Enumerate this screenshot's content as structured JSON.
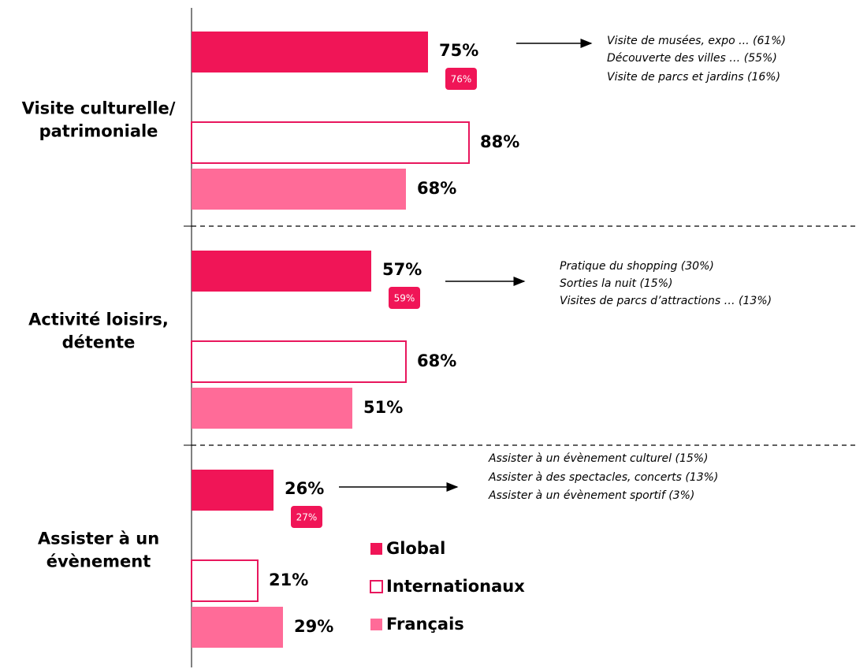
{
  "chart_data": {
    "type": "bar",
    "orientation": "horizontal",
    "categories": [
      "Visite culturelle/\npatrimoniale",
      "Activité loisirs,\ndétente",
      "Assister à un\névènement"
    ],
    "series": [
      {
        "name": "Global",
        "color": "#f01557",
        "values": [
          75,
          57,
          26
        ],
        "value_labels": [
          "75%",
          "57%",
          "26%"
        ]
      },
      {
        "name": "Internationaux",
        "color": "#ffffff",
        "stroke": "#e8175d",
        "values": [
          88,
          68,
          21
        ],
        "value_labels": [
          "88%",
          "68%",
          "21%"
        ]
      },
      {
        "name": "Français",
        "color": "#ff6b98",
        "values": [
          68,
          51,
          29
        ],
        "value_labels": [
          "68%",
          "51%",
          "29%"
        ]
      }
    ],
    "badges": {
      "color": "#f01557",
      "values": [
        76,
        59,
        27
      ],
      "value_labels": [
        "76%",
        "59%",
        "27%"
      ]
    },
    "annotations": [
      [
        "Visite de musées, expo ... (61%)",
        "Découverte des villes … (55%)",
        "Visite de parcs et jardins (16%)"
      ],
      [
        "Pratique du shopping (30%)",
        "Sorties la nuit (15%)",
        "Visites de parcs d’attractions … (13%)"
      ],
      [
        "Assister à un évènement culturel (15%)",
        "Assister à des spectacles, concerts (13%)",
        "Assister à un évènement sportif (3%)"
      ]
    ],
    "xlim": [
      0,
      210
    ],
    "grid": false,
    "legend": "lower-center"
  }
}
